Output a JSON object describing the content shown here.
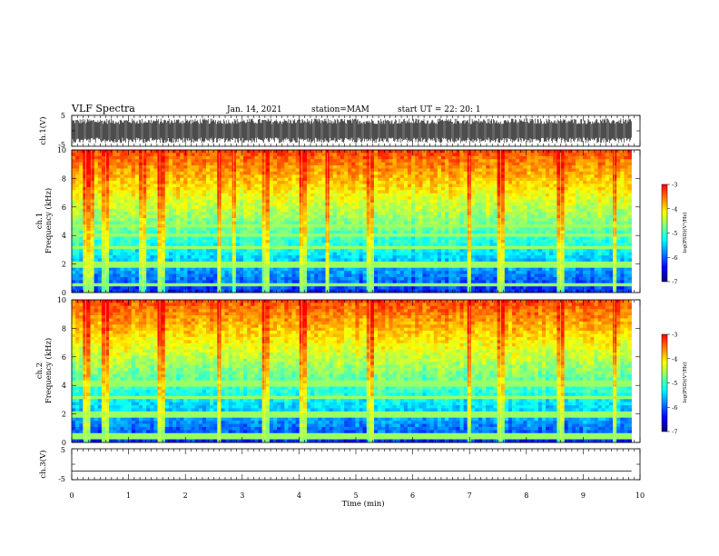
{
  "header": {
    "title": "VLF Spectra",
    "date": "Jan. 14, 2021",
    "station": "station=MAM",
    "start_ut": "start UT =  22: 20: 1"
  },
  "chart_data": [
    {
      "type": "line",
      "panel": "waveform-ch1",
      "ylabel": "ch.1(V)",
      "ylim": [
        -5,
        5
      ],
      "yticks": [
        "5",
        "-5"
      ],
      "xlim": [
        0,
        10
      ],
      "envelope_amplitude": [
        -4,
        4
      ],
      "data_end_x": 9.85
    },
    {
      "type": "heatmap",
      "panel": "spectrogram-ch1",
      "ylabel_line1": "ch.1",
      "ylabel_line2": "Frequency  (kHz)",
      "ylim": [
        0,
        10
      ],
      "yticks": [
        "0",
        "2",
        "4",
        "6",
        "8",
        "10"
      ],
      "xlim": [
        0,
        10
      ],
      "data_end_x": 9.85,
      "colorbar_label": "log(PSD)(V²/Hz)",
      "colorbar_range": [
        -7,
        -3
      ],
      "colorbar_ticks": [
        "-3",
        "-4",
        "-5",
        "-6",
        "-7"
      ],
      "bright_lines_khz": [
        0.55,
        2.0,
        3.1,
        4.0,
        4.7
      ],
      "spike_times_min": [
        0.25,
        0.35,
        0.6,
        1.25,
        1.55,
        2.6,
        2.85,
        3.4,
        4.05,
        4.5,
        5.25,
        7.0,
        7.55,
        8.6,
        9.55
      ]
    },
    {
      "type": "heatmap",
      "panel": "spectrogram-ch2",
      "ylabel_line1": "ch.2",
      "ylabel_line2": "Frequency  (kHz)",
      "ylim": [
        0,
        10
      ],
      "yticks": [
        "0",
        "2",
        "4",
        "6",
        "8",
        "10"
      ],
      "xlim": [
        0,
        10
      ],
      "data_end_x": 9.85,
      "colorbar_label": "log(PSD)(V²/Hz)",
      "colorbar_range": [
        -7,
        -3
      ],
      "colorbar_ticks": [
        "-3",
        "-4",
        "-5",
        "-6",
        "-7"
      ],
      "bright_lines_khz": [
        0.4,
        2.0,
        3.2,
        4.1
      ],
      "spike_times_min": [
        0.25,
        0.6,
        1.55,
        2.6,
        3.4,
        4.05,
        5.25,
        7.0,
        7.55,
        8.6,
        9.55
      ]
    },
    {
      "type": "line",
      "panel": "waveform-ch3",
      "ylabel": "ch.3(V)",
      "ylim": [
        -5,
        5
      ],
      "yticks": [
        "5",
        "-5"
      ],
      "xlim": [
        0,
        10
      ],
      "y_value": -2.2,
      "data_end_x": 9.85
    }
  ],
  "x_axis": {
    "label": "Time  (min)",
    "ticks": [
      "0",
      "1",
      "2",
      "3",
      "4",
      "5",
      "6",
      "7",
      "8",
      "9",
      "10"
    ]
  },
  "colormap": [
    "#000080",
    "#0000ff",
    "#0080ff",
    "#00ffff",
    "#80ff80",
    "#ffff00",
    "#ff8000",
    "#ff0000",
    "#ffffff"
  ]
}
